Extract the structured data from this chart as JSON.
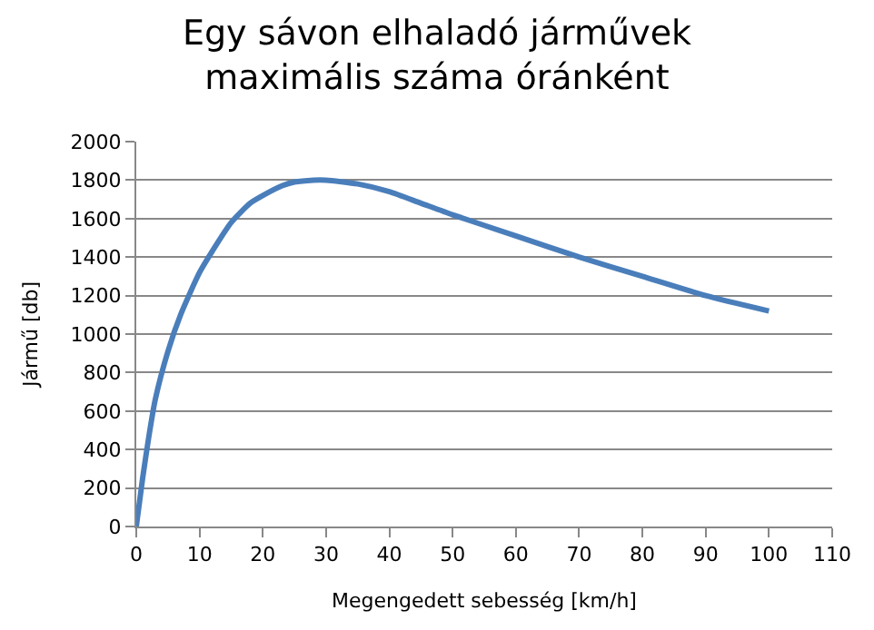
{
  "chart_data": {
    "type": "line",
    "title": "Egy sávon elhaladó járművek\nmaximális száma óránként",
    "xlabel": "Megengedett sebesség [km/h]",
    "ylabel": "Jármű [db]",
    "x": [
      0,
      1,
      2,
      3,
      5,
      7,
      10,
      12,
      15,
      18,
      20,
      23,
      25,
      28,
      30,
      35,
      40,
      45,
      50,
      60,
      70,
      80,
      90,
      100
    ],
    "series": [
      {
        "color": "#4a7ebb",
        "values": [
          0,
          250,
          470,
          660,
          910,
          1100,
          1320,
          1430,
          1580,
          1680,
          1720,
          1770,
          1790,
          1800,
          1800,
          1780,
          1740,
          1680,
          1620,
          1510,
          1400,
          1300,
          1200,
          1120
        ]
      }
    ],
    "xlim": [
      0,
      110
    ],
    "xticks": [
      0,
      10,
      20,
      30,
      40,
      50,
      60,
      70,
      80,
      90,
      100,
      110
    ],
    "ylim": [
      0,
      2000
    ],
    "yticks": [
      0,
      200,
      400,
      600,
      800,
      1000,
      1200,
      1400,
      1600,
      1800,
      2000
    ],
    "grid": "y",
    "legend": false,
    "marker": "none",
    "line_style": "solid"
  }
}
